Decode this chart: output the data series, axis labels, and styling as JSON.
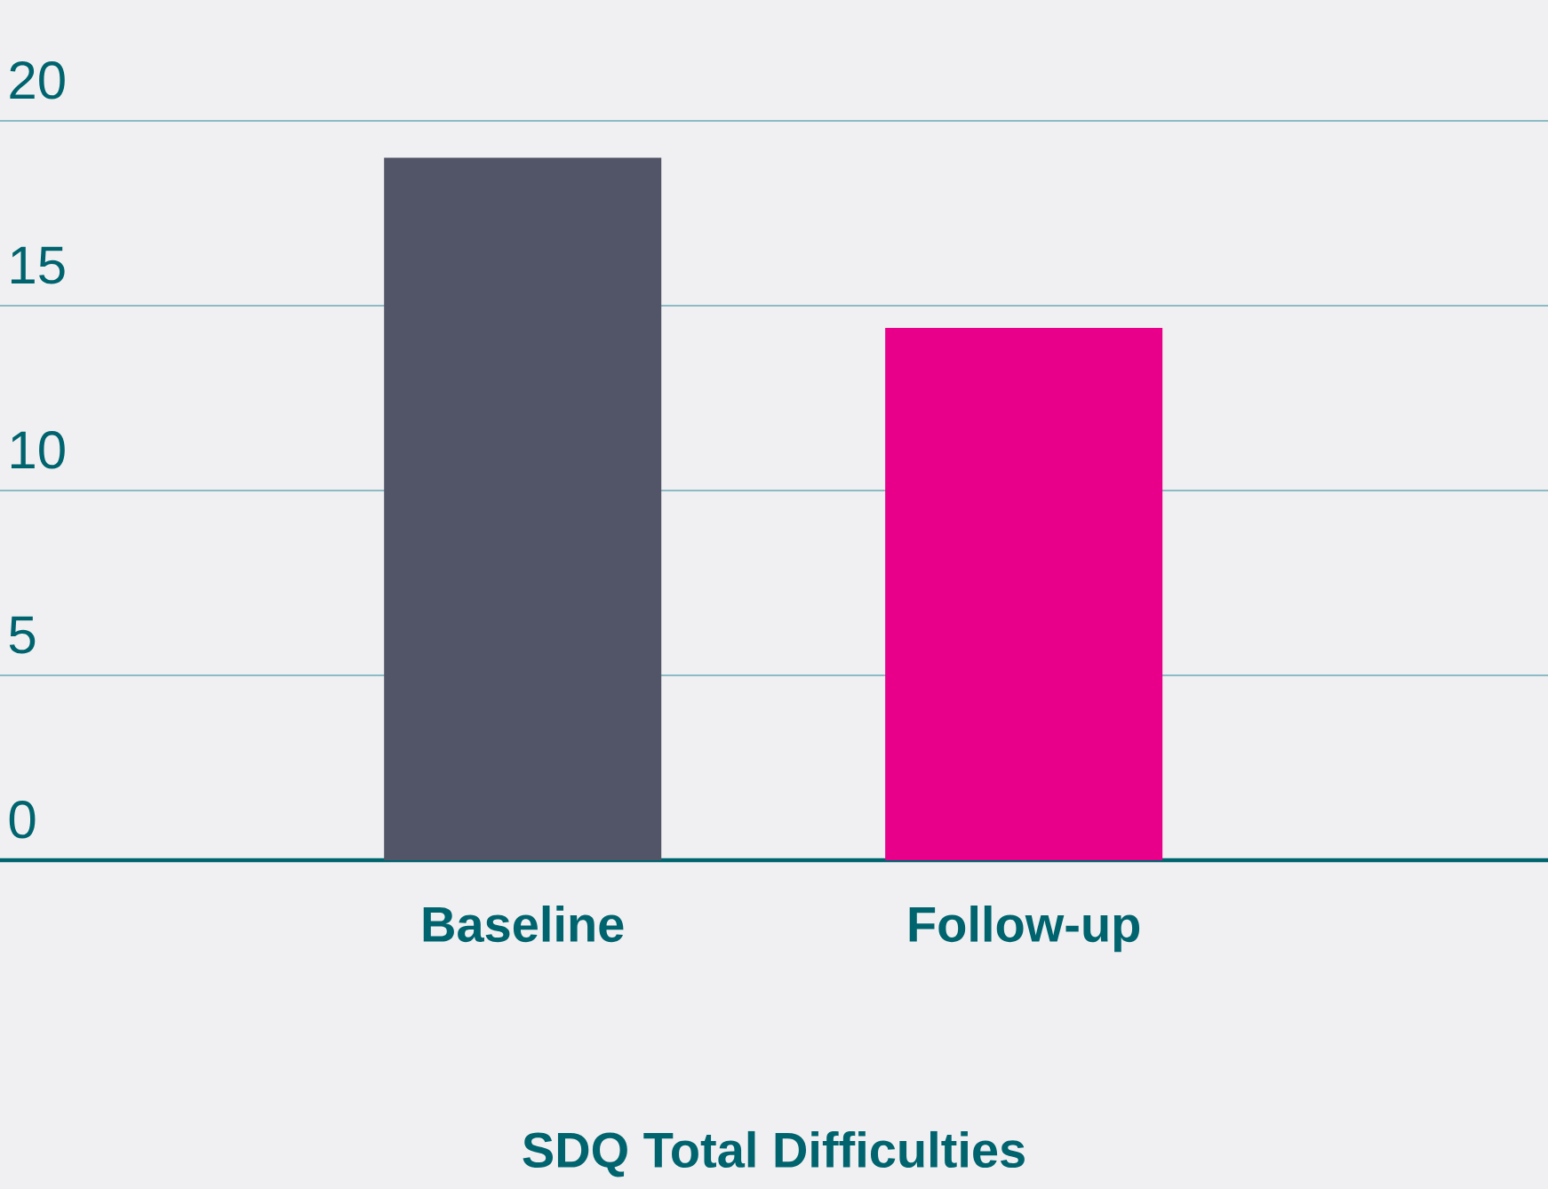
{
  "chart_data": {
    "type": "bar",
    "xlabel": "SDQ Total Difficulties",
    "categories": [
      "Baseline",
      "Follow-up"
    ],
    "values": [
      19.0,
      14.4
    ],
    "colors": [
      "#525568",
      "#e8008a"
    ],
    "ylim": [
      0,
      20
    ],
    "yticks": [
      0,
      5,
      10,
      15,
      20
    ],
    "grid": "y"
  }
}
